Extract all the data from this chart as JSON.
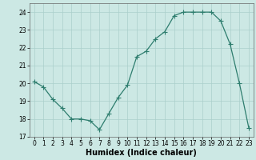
{
  "x": [
    0,
    1,
    2,
    3,
    4,
    5,
    6,
    7,
    8,
    9,
    10,
    11,
    12,
    13,
    14,
    15,
    16,
    17,
    18,
    19,
    20,
    21,
    22,
    23
  ],
  "y": [
    20.1,
    19.8,
    19.1,
    18.6,
    18.0,
    18.0,
    17.9,
    17.4,
    18.3,
    19.2,
    19.9,
    21.5,
    21.8,
    22.5,
    22.9,
    23.8,
    24.0,
    24.0,
    24.0,
    24.0,
    23.5,
    22.2,
    20.0,
    17.5
  ],
  "xlabel": "Humidex (Indice chaleur)",
  "xlim": [
    -0.5,
    23.5
  ],
  "ylim": [
    17.0,
    24.5
  ],
  "yticks": [
    17,
    18,
    19,
    20,
    21,
    22,
    23,
    24
  ],
  "xticks": [
    0,
    1,
    2,
    3,
    4,
    5,
    6,
    7,
    8,
    9,
    10,
    11,
    12,
    13,
    14,
    15,
    16,
    17,
    18,
    19,
    20,
    21,
    22,
    23
  ],
  "line_color": "#2e7d6e",
  "marker_color": "#2e7d6e",
  "bg_color": "#cce8e4",
  "grid_color": "#aacfcb",
  "axes_bg": "#cce8e4",
  "tick_label_fontsize": 5.5,
  "xlabel_fontsize": 7,
  "marker_size": 2.0,
  "line_width": 0.9
}
